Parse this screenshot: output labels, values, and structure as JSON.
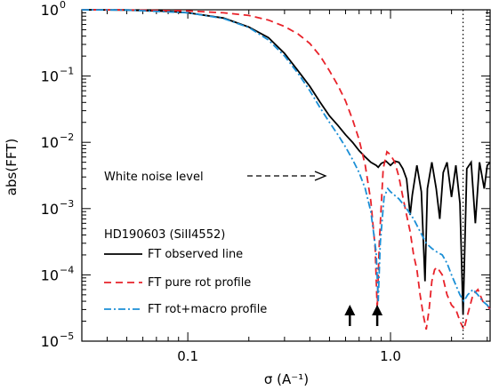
{
  "chart_data": {
    "type": "line",
    "title": "",
    "xlabel": "σ (A⁻¹)",
    "ylabel": "abs(FFT)",
    "x_scale": "log",
    "y_scale": "log",
    "xlim": [
      0.03,
      3.1
    ],
    "ylim": [
      1e-05,
      1
    ],
    "grid": false,
    "x_ticks": [
      {
        "value": 0.1,
        "label": "0.1"
      },
      {
        "value": 1.0,
        "label": "1.0"
      }
    ],
    "y_ticks": [
      {
        "value": 1,
        "base": "10",
        "exp": "0"
      },
      {
        "value": 0.1,
        "base": "10",
        "exp": "−1"
      },
      {
        "value": 0.01,
        "base": "10",
        "exp": "−2"
      },
      {
        "value": 0.001,
        "base": "10",
        "exp": "−3"
      },
      {
        "value": 0.0001,
        "base": "10",
        "exp": "−4"
      },
      {
        "value": 1e-05,
        "base": "10",
        "exp": "−5"
      }
    ],
    "legend_title": "HD190603 (SiII4552)",
    "legend_position": "bottom-left",
    "series": [
      {
        "name": "FT observed line",
        "color": "#000000",
        "dash": "solid",
        "points": [
          [
            0.03,
            1.0
          ],
          [
            0.05,
            0.99
          ],
          [
            0.08,
            0.95
          ],
          [
            0.1,
            0.9
          ],
          [
            0.15,
            0.75
          ],
          [
            0.2,
            0.55
          ],
          [
            0.25,
            0.38
          ],
          [
            0.3,
            0.22
          ],
          [
            0.35,
            0.12
          ],
          [
            0.4,
            0.07
          ],
          [
            0.45,
            0.04
          ],
          [
            0.5,
            0.025
          ],
          [
            0.55,
            0.018
          ],
          [
            0.6,
            0.013
          ],
          [
            0.65,
            0.01
          ],
          [
            0.7,
            0.0075
          ],
          [
            0.75,
            0.006
          ],
          [
            0.8,
            0.005
          ],
          [
            0.85,
            0.0045
          ],
          [
            0.87,
            0.0042
          ],
          [
            0.9,
            0.0048
          ],
          [
            0.95,
            0.0052
          ],
          [
            1.0,
            0.0045
          ],
          [
            1.05,
            0.0052
          ],
          [
            1.1,
            0.005
          ],
          [
            1.15,
            0.004
          ],
          [
            1.2,
            0.0028
          ],
          [
            1.25,
            0.0008
          ],
          [
            1.28,
            0.0016
          ],
          [
            1.35,
            0.0045
          ],
          [
            1.42,
            0.0018
          ],
          [
            1.48,
            8e-05
          ],
          [
            1.52,
            0.002
          ],
          [
            1.6,
            0.005
          ],
          [
            1.68,
            0.002
          ],
          [
            1.75,
            0.0007
          ],
          [
            1.82,
            0.0035
          ],
          [
            1.9,
            0.005
          ],
          [
            2.0,
            0.0015
          ],
          [
            2.1,
            0.0045
          ],
          [
            2.2,
            0.0012
          ],
          [
            2.28,
            2.5e-05
          ],
          [
            2.38,
            0.004
          ],
          [
            2.5,
            0.005
          ],
          [
            2.62,
            0.0006
          ],
          [
            2.75,
            0.005
          ],
          [
            2.9,
            0.002
          ],
          [
            3.0,
            0.0045
          ],
          [
            3.1,
            0.005
          ]
        ]
      },
      {
        "name": "FT pure rot profile",
        "color": "#e8222a",
        "dash": "dashed",
        "points": [
          [
            0.03,
            1.0
          ],
          [
            0.05,
            0.995
          ],
          [
            0.1,
            0.96
          ],
          [
            0.15,
            0.9
          ],
          [
            0.2,
            0.82
          ],
          [
            0.25,
            0.7
          ],
          [
            0.3,
            0.56
          ],
          [
            0.35,
            0.43
          ],
          [
            0.4,
            0.31
          ],
          [
            0.45,
            0.2
          ],
          [
            0.5,
            0.12
          ],
          [
            0.55,
            0.072
          ],
          [
            0.6,
            0.042
          ],
          [
            0.65,
            0.022
          ],
          [
            0.7,
            0.011
          ],
          [
            0.75,
            0.0045
          ],
          [
            0.8,
            0.0013
          ],
          [
            0.84,
            0.00025
          ],
          [
            0.86,
            3e-05
          ],
          [
            0.88,
            0.0003
          ],
          [
            0.92,
            0.004
          ],
          [
            0.96,
            0.0072
          ],
          [
            1.0,
            0.0065
          ],
          [
            1.05,
            0.005
          ],
          [
            1.1,
            0.003
          ],
          [
            1.15,
            0.0015
          ],
          [
            1.2,
            0.0008
          ],
          [
            1.25,
            0.00045
          ],
          [
            1.3,
            0.0002
          ],
          [
            1.35,
            0.00012
          ],
          [
            1.4,
            5e-05
          ],
          [
            1.45,
            2.5e-05
          ],
          [
            1.5,
            1.5e-05
          ],
          [
            1.55,
            3e-05
          ],
          [
            1.6,
            8e-05
          ],
          [
            1.65,
            0.00012
          ],
          [
            1.7,
            0.00013
          ],
          [
            1.8,
            0.0001
          ],
          [
            1.9,
            5e-05
          ],
          [
            2.0,
            3.5e-05
          ],
          [
            2.1,
            3e-05
          ],
          [
            2.2,
            2e-05
          ],
          [
            2.3,
            1.5e-05
          ],
          [
            2.4,
            2.5e-05
          ],
          [
            2.55,
            5e-05
          ],
          [
            2.7,
            6e-05
          ],
          [
            2.85,
            4e-05
          ],
          [
            3.0,
            3.5e-05
          ],
          [
            3.1,
            3e-05
          ]
        ]
      },
      {
        "name": "FT  rot+macro profile",
        "color": "#1b8fd6",
        "dash": "dashdot",
        "points": [
          [
            0.03,
            1.0
          ],
          [
            0.05,
            0.99
          ],
          [
            0.1,
            0.9
          ],
          [
            0.15,
            0.74
          ],
          [
            0.2,
            0.54
          ],
          [
            0.25,
            0.35
          ],
          [
            0.3,
            0.2
          ],
          [
            0.35,
            0.11
          ],
          [
            0.4,
            0.06
          ],
          [
            0.45,
            0.033
          ],
          [
            0.5,
            0.02
          ],
          [
            0.55,
            0.013
          ],
          [
            0.6,
            0.0085
          ],
          [
            0.65,
            0.0055
          ],
          [
            0.7,
            0.0035
          ],
          [
            0.75,
            0.002
          ],
          [
            0.8,
            0.0009
          ],
          [
            0.85,
            0.00022
          ],
          [
            0.87,
            4e-05
          ],
          [
            0.89,
            0.0003
          ],
          [
            0.93,
            0.0015
          ],
          [
            0.97,
            0.002
          ],
          [
            1.0,
            0.0018
          ],
          [
            1.1,
            0.0014
          ],
          [
            1.2,
            0.001
          ],
          [
            1.3,
            0.0007
          ],
          [
            1.4,
            0.00045
          ],
          [
            1.5,
            0.0003
          ],
          [
            1.6,
            0.00025
          ],
          [
            1.7,
            0.00022
          ],
          [
            1.8,
            0.0002
          ],
          [
            1.9,
            0.00015
          ],
          [
            2.0,
            0.0001
          ],
          [
            2.1,
            7e-05
          ],
          [
            2.2,
            5e-05
          ],
          [
            2.3,
            4e-05
          ],
          [
            2.4,
            5e-05
          ],
          [
            2.55,
            6e-05
          ],
          [
            2.7,
            5e-05
          ],
          [
            2.85,
            4e-05
          ],
          [
            3.0,
            3.5e-05
          ],
          [
            3.1,
            3e-05
          ]
        ]
      }
    ],
    "annotations": {
      "noise_label": "White noise level",
      "vertical_line_x": 2.28,
      "arrows_x": [
        0.63,
        0.86
      ]
    }
  }
}
